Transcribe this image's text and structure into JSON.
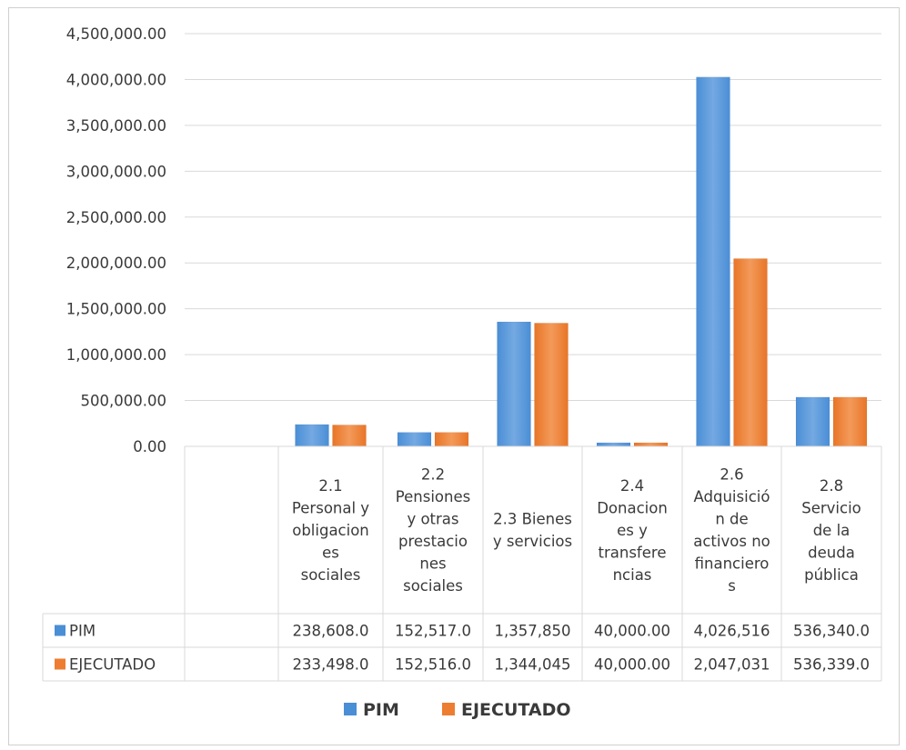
{
  "chart_data": {
    "type": "bar",
    "title": "",
    "xlabel": "",
    "ylabel": "",
    "ylim": [
      0,
      4500000
    ],
    "yticks": [
      "0.00",
      "500,000.00",
      "1,000,000.00",
      "1,500,000.00",
      "2,000,000.00",
      "2,500,000.00",
      "3,000,000.00",
      "3,500,000.00",
      "4,000,000.00",
      "4,500,000.00"
    ],
    "grid": true,
    "legend_position": "bottom",
    "categories": [
      "",
      "2.1 Personal y obligaciones sociales",
      "2.2 Pensiones y otras prestaciones sociales",
      "2.3 Bienes y servicios",
      "2.4 Donaciones y transferencias",
      "2.6 Adquisición de activos no financieros",
      "2.8 Servicio de la deuda pública"
    ],
    "category_lines": [
      [],
      [
        "2.1",
        "Personal y",
        "obligacion",
        "es",
        "sociales"
      ],
      [
        "2.2",
        "Pensiones",
        "y otras",
        "prestacio",
        "nes",
        "sociales"
      ],
      [
        "2.3 Bienes",
        "y servicios"
      ],
      [
        "2.4",
        "Donacion",
        "es y",
        "transfere",
        "ncias"
      ],
      [
        "2.6",
        "Adquisició",
        "n de",
        "activos no",
        "financiero",
        "s"
      ],
      [
        "2.8",
        "Servicio",
        "de la",
        "deuda",
        "pública"
      ]
    ],
    "series": [
      {
        "name": "PIM",
        "color": "#4a8ed6",
        "values": [
          null,
          238608.0,
          152517.0,
          1357850,
          40000.0,
          4026516,
          536340.0
        ],
        "table_values": [
          "",
          "238,608.0",
          "152,517.0",
          "1,357,850",
          "40,000.00",
          "4,026,516",
          "536,340.0"
        ]
      },
      {
        "name": "EJECUTADO",
        "color": "#ed7d31",
        "values": [
          null,
          233498.0,
          152516.0,
          1344045,
          40000.0,
          2047031,
          536339.0
        ],
        "table_values": [
          "",
          "233,498.0",
          "152,516.0",
          "1,344,045",
          "40,000.00",
          "2,047,031",
          "536,339.0"
        ]
      }
    ],
    "legend": [
      "PIM",
      "EJECUTADO"
    ]
  }
}
